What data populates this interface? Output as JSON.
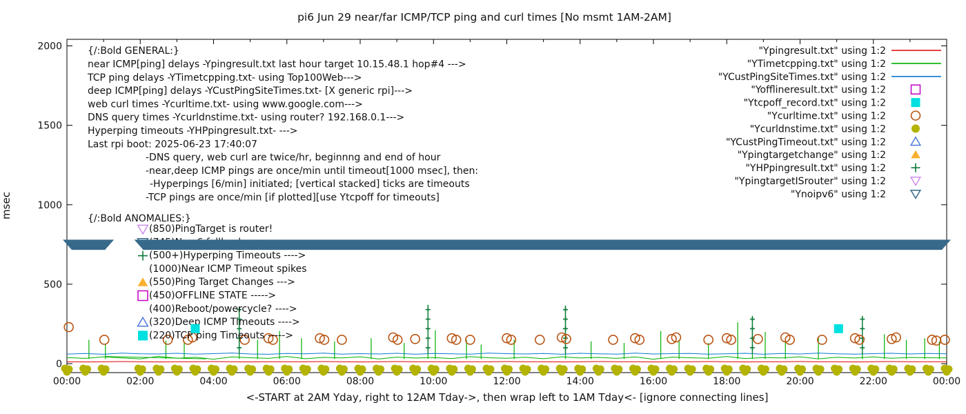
{
  "title": "pi6 Jun 29  near/far ICMP/TCP ping and curl times [No msmt 1AM-2AM]",
  "axes": {
    "y_label": "msec",
    "y_ticks": [
      0,
      500,
      1000,
      1500,
      2000
    ],
    "y_range": [
      0,
      2000
    ],
    "x_tick_labels": [
      "00:00",
      "02:00",
      "04:00",
      "06:00",
      "08:00",
      "10:00",
      "12:00",
      "14:00",
      "16:00",
      "18:00",
      "20:00",
      "22:00",
      "00:00"
    ],
    "x_label": "<-START at 2AM Yday, right to 12AM Tday->, then wrap left to 1AM Tday<- [ignore connecting lines]"
  },
  "colors": {
    "red": "#e00000",
    "green": "#00b000",
    "blue": "#0a7ad1",
    "magenta": "#c400c4",
    "cyan": "#00e0e0",
    "orange_brown": "#b85513",
    "olive": "#b3b300",
    "light_blue": "#4e79d9",
    "amber": "#f9b02f",
    "dark_green": "#0a7a38",
    "violet": "#cf8cf0",
    "steel": "#37698a",
    "frame": "#000000"
  },
  "legend": [
    {
      "label": "\"Ypingresult.txt\" using 1:2",
      "marker": "line",
      "color": "#e00000"
    },
    {
      "label": "\"YTimetcpping.txt\" using 1:2",
      "marker": "line",
      "color": "#00b000"
    },
    {
      "label": "\"YCustPingSiteTimes.txt\" using 1:2",
      "marker": "line",
      "color": "#0a7ad1"
    },
    {
      "label": "\"Yofflineresult.txt\" using 1:2",
      "marker": "open-square",
      "color": "#c400c4"
    },
    {
      "label": "\"Ytcpoff_record.txt\" using 1:2",
      "marker": "filled-square",
      "color": "#00e0e0"
    },
    {
      "label": "\"Ycurltime.txt\" using 1:2",
      "marker": "open-circle",
      "color": "#b85513"
    },
    {
      "label": "\"Ycurldnstime.txt\" using 1:2",
      "marker": "filled-circle",
      "color": "#b3b300"
    },
    {
      "label": "\"YCustPingTimeout.txt\" using 1:2",
      "marker": "open-triangle-up",
      "color": "#4e79d9"
    },
    {
      "label": "\"Ypingtargetchange\" using 1:2",
      "marker": "filled-triangle-up",
      "color": "#f9b02f"
    },
    {
      "label": "\"YHPpingresult.txt\" using 1:2",
      "marker": "plus",
      "color": "#0a7a38"
    },
    {
      "label": "\"YpingtargetISrouter\" using 1:2",
      "marker": "open-triangle-down",
      "color": "#cf8cf0"
    },
    {
      "label": "\"Ynoipv6\" using 1:2",
      "marker": "open-triangle-down",
      "color": "#37698a"
    }
  ],
  "annotations": {
    "general_header": "{/:Bold GENERAL:}",
    "general": [
      {
        "indent": 0,
        "text": "near ICMP[ping] delays -Ypingresult.txt last hour target 10.15.48.1 hop#4 --->"
      },
      {
        "indent": 0,
        "text": "TCP ping delays -YTimetcpping.txt- using Top100Web--->"
      },
      {
        "indent": 0,
        "text": "deep ICMP[ping] delays -YCustPingSiteTimes.txt- [X generic rpi]--->"
      },
      {
        "indent": 0,
        "text": "web curl times -Ycurltime.txt- using www.google.com--->"
      },
      {
        "indent": 0,
        "text": "DNS query times -Ycurldnstime.txt- using router? 192.168.0.1--->"
      },
      {
        "indent": 0,
        "text": "Hyperping timeouts -YHPpingresult.txt- --->"
      },
      {
        "indent": 0,
        "text": "Last rpi boot: 2025-06-23 17:40:07"
      },
      {
        "indent": 84,
        "text": "-DNS query, web curl are twice/hr, beginnng and end of hour"
      },
      {
        "indent": 84,
        "text": "-near,deep ICMP pings are once/min until timeout[1000 msec], then:"
      },
      {
        "indent": 90,
        "text": "-Hyperpings [6/min] initiated; [vertical stacked] ticks are timeouts"
      },
      {
        "indent": 84,
        "text": "-TCP pings are once/min [if plotted][use Ytcpoff for timeouts]"
      }
    ],
    "anomalies_header": "{/:Bold ANOMALIES:}",
    "anomalies": [
      {
        "marker": "open-triangle-down",
        "color": "#cf8cf0",
        "text": "(850)PingTarget is router!"
      },
      {
        "marker": "open-triangle-down",
        "color": "#37698a",
        "text": "(745)No v6 fallback ---->"
      },
      {
        "marker": "plus",
        "color": "#0a7a38",
        "text": "(500+)Hyperping Timeouts ---->"
      },
      {
        "marker": "none",
        "color": "",
        "text": "(1000)Near ICMP Timeout spikes"
      },
      {
        "marker": "filled-triangle-up",
        "color": "#f9b02f",
        "text": "(550)Ping Target Changes --->"
      },
      {
        "marker": "open-square",
        "color": "#c400c4",
        "text": "(450)OFFLINE STATE ----->"
      },
      {
        "marker": "none",
        "color": "",
        "text": "(400)Reboot/powercycle? ---->"
      },
      {
        "marker": "open-triangle-up",
        "color": "#4e79d9",
        "text": "(320)Deep ICMP Timeouts ---->"
      },
      {
        "marker": "filled-square",
        "color": "#00e0e0",
        "text": "(220)TCP ping Timeouts ----->"
      }
    ]
  },
  "chart_data": {
    "type": "line",
    "x_unit": "hours",
    "x_range": [
      0,
      24
    ],
    "ylim": [
      0,
      2000
    ],
    "grid": false,
    "legend_position": "top-right-inside",
    "sample_step_hours": 0.5,
    "line_series": [
      {
        "name": "Ypingresult.txt (near ICMP ping msec)",
        "color": "#e00000",
        "values": [
          12,
          11,
          12,
          13,
          12,
          11,
          12,
          12,
          13,
          12,
          11,
          12,
          12,
          12,
          13,
          12,
          11,
          12,
          13,
          12,
          12,
          11,
          12,
          12,
          13,
          12,
          12,
          11,
          12,
          13,
          12,
          12,
          11,
          12,
          12,
          13,
          12,
          11,
          12,
          12,
          13,
          12,
          12,
          11,
          12,
          13,
          12,
          12,
          12
        ]
      },
      {
        "name": "YTimetcpping.txt (TCP ping msec)",
        "color": "#00b000",
        "values": [
          38,
          33,
          43,
          36,
          30,
          46,
          34,
          40,
          28,
          42,
          37,
          33,
          45,
          31,
          39,
          36,
          43,
          29,
          41,
          35,
          38,
          32,
          44,
          37,
          34,
          40,
          31,
          43,
          36,
          39,
          33,
          42,
          28,
          41,
          37,
          34,
          45,
          32,
          38,
          36,
          43,
          30,
          40,
          35,
          42,
          34,
          39,
          37,
          36
        ],
        "spikes": [
          [
            0.6,
            150
          ],
          [
            1.05,
            120
          ],
          [
            2.7,
            145
          ],
          [
            3.2,
            130
          ],
          [
            4.7,
            355
          ],
          [
            5.2,
            150
          ],
          [
            5.8,
            205
          ],
          [
            6.4,
            160
          ],
          [
            7.3,
            140
          ],
          [
            8.3,
            160
          ],
          [
            9.2,
            130
          ],
          [
            9.85,
            370
          ],
          [
            10.05,
            210
          ],
          [
            10.9,
            150
          ],
          [
            11.3,
            120
          ],
          [
            12.2,
            150
          ],
          [
            13.6,
            365
          ],
          [
            14.3,
            140
          ],
          [
            15.2,
            130
          ],
          [
            16.2,
            205
          ],
          [
            16.7,
            150
          ],
          [
            17.5,
            130
          ],
          [
            18.3,
            260
          ],
          [
            18.7,
            300
          ],
          [
            19.05,
            200
          ],
          [
            19.6,
            150
          ],
          [
            20.5,
            165
          ],
          [
            21.7,
            300
          ],
          [
            22.3,
            185
          ],
          [
            22.9,
            150
          ],
          [
            23.4,
            160
          ],
          [
            23.8,
            140
          ]
        ],
        "wrap_artifact": [
          [
            1.05,
            45
          ],
          [
            3.8,
            30
          ]
        ]
      },
      {
        "name": "YCustPingSiteTimes.txt (deep ICMP ping msec)",
        "color": "#0a7ad1",
        "values": [
          60,
          64,
          59,
          66,
          62,
          61,
          65,
          60,
          63,
          67,
          61,
          59,
          64,
          62,
          66,
          60,
          63,
          61,
          65,
          59,
          64,
          62,
          60,
          66,
          63,
          61,
          64,
          59,
          65,
          62,
          60,
          66,
          61,
          63,
          64,
          60,
          62,
          65,
          59,
          64,
          61,
          66,
          62,
          60,
          63,
          65,
          61,
          64,
          62
        ]
      }
    ],
    "scatter_series": [
      {
        "name": "Ycurltime.txt (web curl msec)",
        "marker": "open-circle",
        "color": "#b85513",
        "points": [
          [
            0.05,
            230
          ],
          [
            1.02,
            150
          ],
          [
            2.75,
            150
          ],
          [
            3.3,
            150
          ],
          [
            3.42,
            165
          ],
          [
            4.85,
            150
          ],
          [
            5.5,
            160
          ],
          [
            5.62,
            150
          ],
          [
            6.9,
            160
          ],
          [
            7.02,
            150
          ],
          [
            7.5,
            150
          ],
          [
            8.9,
            165
          ],
          [
            9.02,
            150
          ],
          [
            9.5,
            155
          ],
          [
            10.5,
            160
          ],
          [
            10.62,
            150
          ],
          [
            11.0,
            150
          ],
          [
            12.0,
            160
          ],
          [
            12.12,
            150
          ],
          [
            12.9,
            150
          ],
          [
            13.5,
            165
          ],
          [
            13.62,
            155
          ],
          [
            14.9,
            150
          ],
          [
            15.5,
            160
          ],
          [
            15.62,
            150
          ],
          [
            16.5,
            155
          ],
          [
            16.62,
            165
          ],
          [
            17.5,
            150
          ],
          [
            18.0,
            160
          ],
          [
            18.12,
            150
          ],
          [
            18.85,
            155
          ],
          [
            19.6,
            165
          ],
          [
            19.72,
            150
          ],
          [
            20.6,
            150
          ],
          [
            21.5,
            160
          ],
          [
            21.62,
            150
          ],
          [
            22.5,
            155
          ],
          [
            22.62,
            165
          ],
          [
            23.6,
            150
          ],
          [
            23.72,
            145
          ],
          [
            23.95,
            150
          ]
        ]
      },
      {
        "name": "Ycurldnstime.txt (DNS query msec, sits on axis)",
        "marker": "filled-circle",
        "color": "#b3b300",
        "msec": 0,
        "cluster_times": [
          0,
          0.5,
          1,
          2,
          2.5,
          3,
          3.5,
          4,
          4.5,
          5,
          5.5,
          6,
          6.5,
          7,
          7.5,
          8,
          8.5,
          9,
          9.5,
          10,
          10.5,
          11,
          11.5,
          12,
          12.5,
          13,
          13.5,
          14,
          14.5,
          15,
          15.5,
          16,
          16.5,
          17,
          17.5,
          18,
          18.5,
          19,
          19.5,
          20,
          20.5,
          21,
          21.5,
          22,
          22.5,
          23,
          23.5,
          24
        ]
      },
      {
        "name": "Ytcpoff_record.txt (TCP ping timeouts)",
        "marker": "filled-square",
        "color": "#00e0e0",
        "points": [
          [
            3.5,
            220
          ],
          [
            21.05,
            220
          ]
        ]
      },
      {
        "name": "YHPpingresult.txt (hyperping timeout tick stacks)",
        "marker": "plus",
        "color": "#0a7a38",
        "stacks": [
          [
            4.7,
            355
          ],
          [
            9.85,
            370
          ],
          [
            13.6,
            365
          ],
          [
            18.7,
            300
          ],
          [
            21.7,
            300
          ]
        ]
      }
    ],
    "band": {
      "name": "Ynoipv6 (no-ipv6 marker band)",
      "marker": "open-triangle-down",
      "color": "#37698a",
      "msec_center": 748,
      "msec_half_height": 32,
      "segments_hours": [
        [
          0.0,
          1.17
        ],
        [
          1.95,
          24.0
        ]
      ]
    }
  }
}
